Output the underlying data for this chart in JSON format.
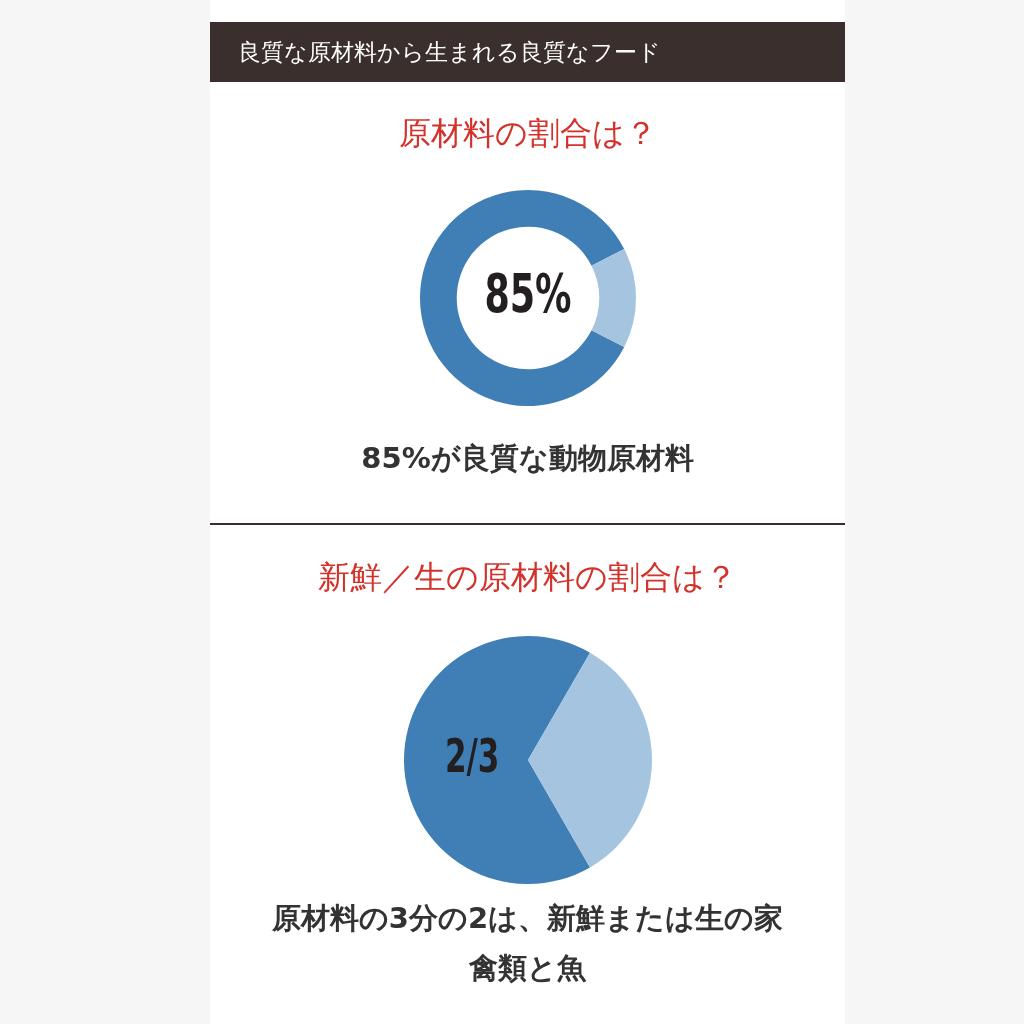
{
  "chart_data": [
    {
      "type": "donut",
      "title": "良質な原材料から生まれる良質なフード",
      "subtitle": "原材料の割合は？",
      "categories": [
        null,
        null
      ],
      "values": [
        85,
        15
      ],
      "colors": [
        "#3f7fb6",
        "#a4c4e0"
      ],
      "value_labels": [
        "85%",
        null
      ],
      "annotations": [
        "85%が良質な動物原材料"
      ]
    },
    {
      "type": "pie",
      "title": "新鮮／生の原材料の割合は？",
      "categories": [
        null,
        null
      ],
      "values": [
        0.6667,
        0.3333
      ],
      "colors": [
        "#3f7fb6",
        "#a4c4e0"
      ],
      "value_labels": [
        "2/3",
        null
      ],
      "annotations": [
        "原材料の3分の2は、新鮮または生の家禽類と魚"
      ]
    }
  ]
}
